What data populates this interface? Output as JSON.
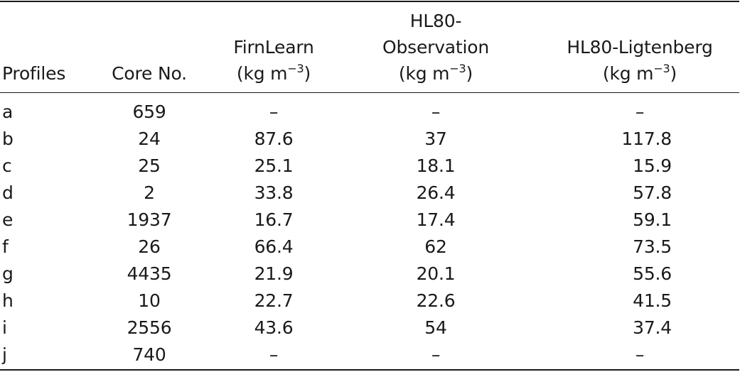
{
  "table": {
    "headers": {
      "profiles": "Profiles",
      "core_no": "Core No.",
      "firnlearn": {
        "line1": "FirnLearn",
        "unit_prefix": "(kg m",
        "unit_exp": "−3",
        "unit_suffix": ")"
      },
      "hl80_observation": {
        "line1": "HL80-",
        "line2": "Observation",
        "unit_prefix": "(kg m",
        "unit_exp": "−3",
        "unit_suffix": ")"
      },
      "hl80_ligtenberg": {
        "line1": "HL80-Ligtenberg",
        "unit_prefix": "(kg m",
        "unit_exp": "−3",
        "unit_suffix": ")"
      }
    },
    "rows": [
      {
        "profile": "a",
        "core": "659",
        "firnlearn": "–",
        "observation": "–",
        "ligtenberg": "–"
      },
      {
        "profile": "b",
        "core": "24",
        "firnlearn": "87.6",
        "observation": "37",
        "ligtenberg": "117.8"
      },
      {
        "profile": "c",
        "core": "25",
        "firnlearn": "25.1",
        "observation": "18.1",
        "ligtenberg": "15.9"
      },
      {
        "profile": "d",
        "core": "2",
        "firnlearn": "33.8",
        "observation": "26.4",
        "ligtenberg": "57.8"
      },
      {
        "profile": "e",
        "core": "1937",
        "firnlearn": "16.7",
        "observation": "17.4",
        "ligtenberg": "59.1"
      },
      {
        "profile": "f",
        "core": "26",
        "firnlearn": "66.4",
        "observation": "62",
        "ligtenberg": "73.5"
      },
      {
        "profile": "g",
        "core": "4435",
        "firnlearn": "21.9",
        "observation": "20.1",
        "ligtenberg": "55.6"
      },
      {
        "profile": "h",
        "core": "10",
        "firnlearn": "22.7",
        "observation": "22.6",
        "ligtenberg": "41.5"
      },
      {
        "profile": "i",
        "core": "2556",
        "firnlearn": "43.6",
        "observation": "54",
        "ligtenberg": "37.4"
      },
      {
        "profile": "j",
        "core": "740",
        "firnlearn": "–",
        "observation": "–",
        "ligtenberg": "–"
      }
    ]
  }
}
